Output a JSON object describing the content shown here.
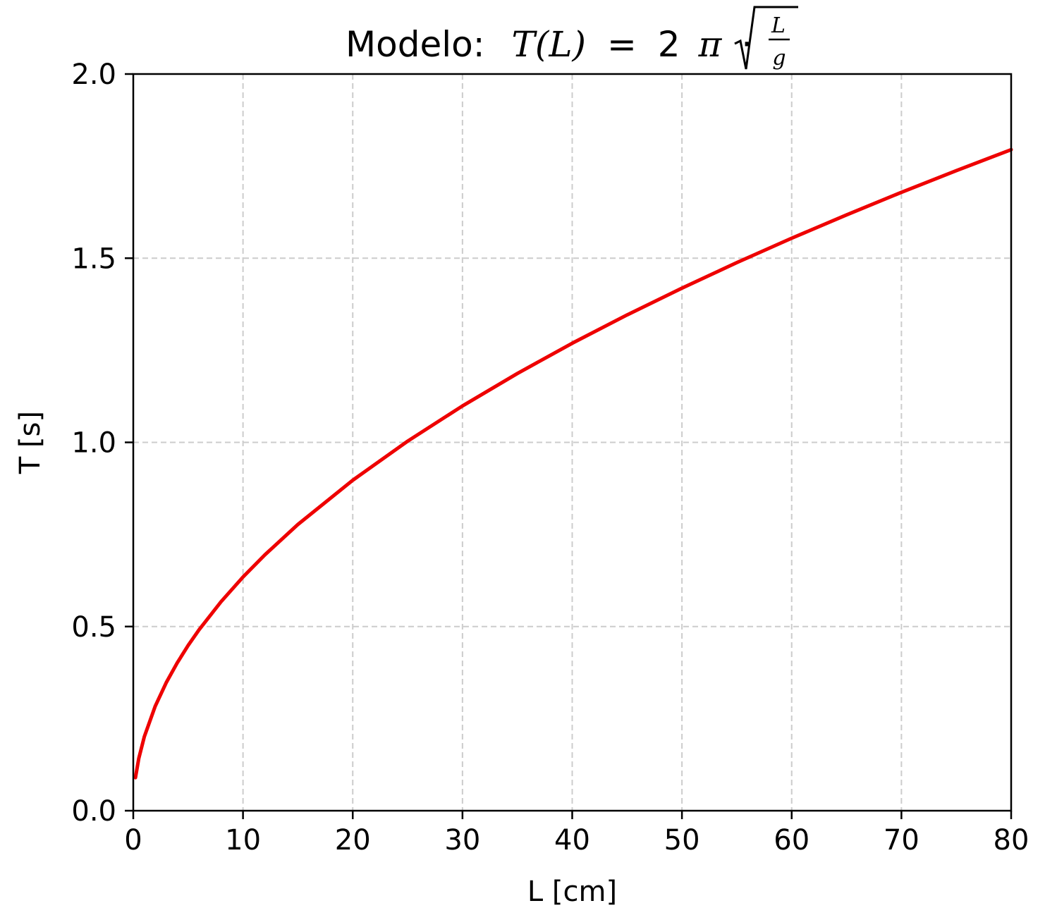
{
  "chart_data": {
    "type": "line",
    "title": {
      "prefix": "Modelo:",
      "formula": {
        "lhs": "T(L)",
        "eq": "=",
        "coef": "2",
        "pi": "π",
        "dot": "·",
        "num": "L",
        "den": "g"
      }
    },
    "xlabel": "L [cm]",
    "ylabel": "T [s]",
    "xlim": [
      0,
      80
    ],
    "ylim": [
      0,
      2.0
    ],
    "xticks": [
      0,
      10,
      20,
      30,
      40,
      50,
      60,
      70,
      80
    ],
    "xtick_labels": [
      "0",
      "10",
      "20",
      "30",
      "40",
      "50",
      "60",
      "70",
      "80"
    ],
    "yticks": [
      0.0,
      0.5,
      1.0,
      1.5,
      2.0
    ],
    "ytick_labels": [
      "0.0",
      "0.5",
      "1.0",
      "1.5",
      "2.0"
    ],
    "grid": true,
    "series": [
      {
        "color": "#ee0000",
        "x": [
          0.2,
          0.5,
          1,
          2,
          3,
          4,
          5,
          6,
          8,
          10,
          12,
          15,
          20,
          25,
          30,
          35,
          40,
          45,
          50,
          55,
          60,
          65,
          70,
          75,
          80
        ],
        "y": [
          0.0897,
          0.1419,
          0.2006,
          0.2837,
          0.3475,
          0.4013,
          0.4486,
          0.4915,
          0.5675,
          0.6345,
          0.695,
          0.7771,
          0.8973,
          1.0032,
          1.099,
          1.187,
          1.269,
          1.346,
          1.4188,
          1.4881,
          1.5542,
          1.6177,
          1.6788,
          1.7377,
          1.7947
        ]
      }
    ]
  }
}
